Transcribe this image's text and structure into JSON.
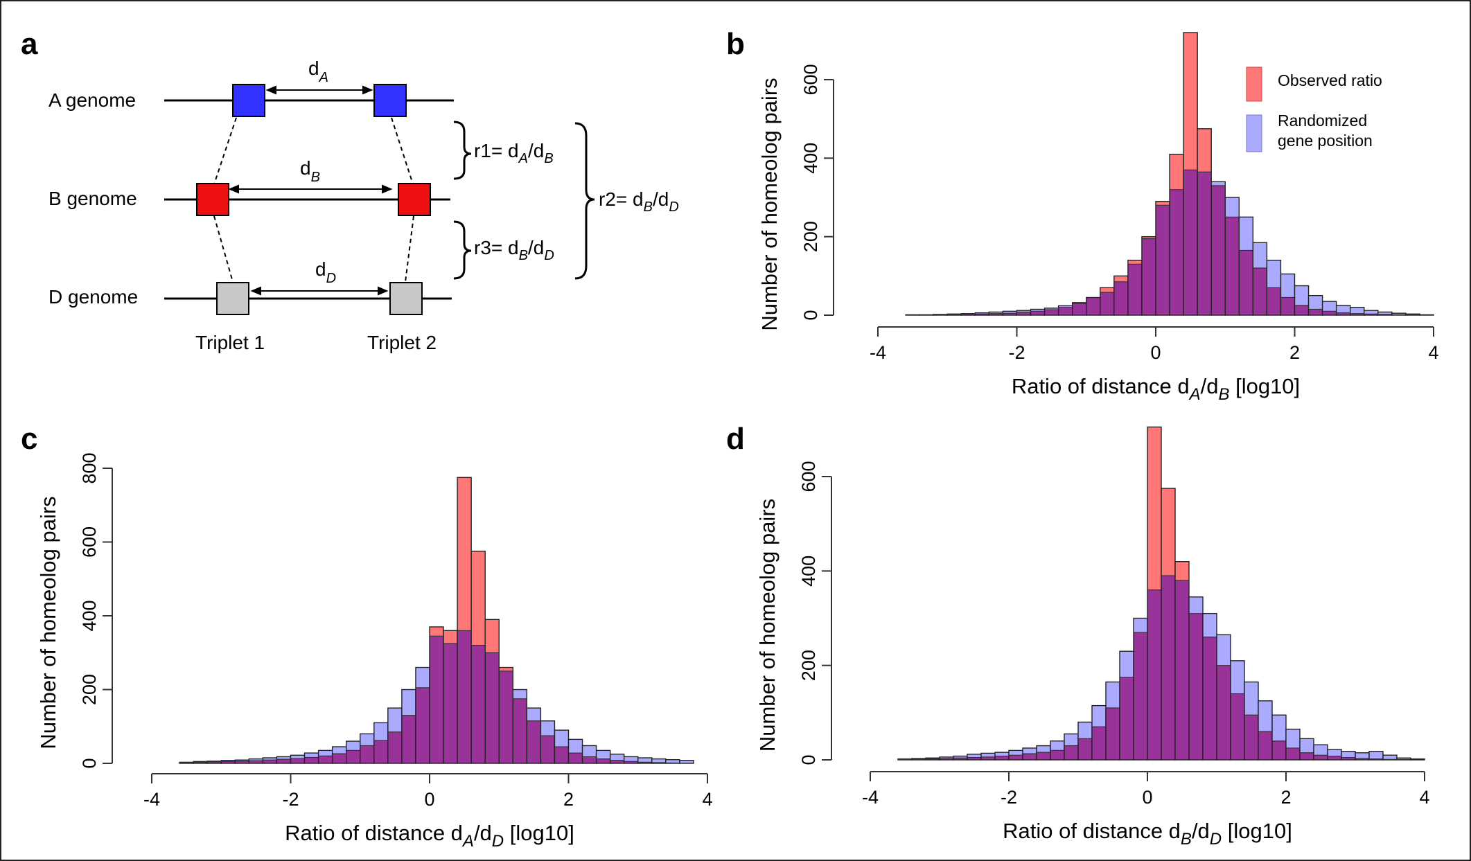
{
  "panels": {
    "a": {
      "letter": "a",
      "genomes": [
        "A genome",
        "B genome",
        "D genome"
      ],
      "triplets": [
        "Triplet 1",
        "Triplet 2"
      ],
      "d_labels": [
        "d",
        "d",
        "d"
      ],
      "d_subs": [
        "A",
        "B",
        "D"
      ],
      "ratios": [
        {
          "head": "r1",
          "eq": "= d",
          "s1": "A",
          "mid": "/d",
          "s2": "B"
        },
        {
          "head": "r3",
          "eq": "= d",
          "s1": "B",
          "mid": "/d",
          "s2": "D"
        },
        {
          "head": "r2",
          "eq": "= d",
          "s1": "B",
          "mid": "/d",
          "s2": "D"
        }
      ],
      "colors": {
        "A": "#3333ff",
        "B": "#ee1111",
        "D": "#c8c8c8"
      }
    },
    "b": {
      "letter": "b"
    },
    "c": {
      "letter": "c"
    },
    "d": {
      "letter": "d"
    }
  },
  "legend": {
    "observed": "Observed ratio",
    "randomized_line1": "Randomized",
    "randomized_line2": "gene position",
    "colors": {
      "observed": "#ff7777",
      "randomized": "#aaaaff",
      "overlap": "#993399"
    }
  },
  "chart_data": [
    {
      "type": "bar",
      "panel": "b",
      "ylabel": "Number of homeolog pairs",
      "xlabel": {
        "prefix": "Ratio of distance ",
        "v1": "d",
        "s1": "A",
        "mid": "/d",
        "v2": "",
        "s2": "B",
        "suffix": "  [log10]"
      },
      "xlim": [
        -4,
        4
      ],
      "ylim": [
        0,
        700
      ],
      "xticks": [
        -4,
        -2,
        0,
        2,
        4
      ],
      "xtick_labels": [
        "-4",
        "-2",
        "0",
        "2",
        "4"
      ],
      "yticks": [
        0,
        200,
        400,
        600
      ],
      "ytick_labels": [
        "0",
        "200",
        "400",
        "600"
      ],
      "bin_start": -4.0,
      "bin_width": 0.2,
      "series": [
        {
          "name": "Observed ratio",
          "values": [
            0,
            0,
            1,
            0,
            1,
            2,
            3,
            3,
            4,
            5,
            8,
            10,
            14,
            20,
            30,
            45,
            70,
            100,
            140,
            200,
            290,
            410,
            720,
            475,
            330,
            250,
            165,
            120,
            70,
            45,
            25,
            15,
            10,
            6,
            4,
            3,
            2,
            1,
            1,
            0
          ]
        },
        {
          "name": "Randomized gene position",
          "values": [
            0,
            0,
            1,
            1,
            2,
            3,
            4,
            6,
            8,
            10,
            12,
            15,
            18,
            24,
            32,
            45,
            58,
            85,
            130,
            195,
            280,
            320,
            370,
            365,
            340,
            300,
            250,
            185,
            140,
            105,
            75,
            50,
            35,
            25,
            20,
            12,
            8,
            5,
            3,
            1
          ]
        }
      ]
    },
    {
      "type": "bar",
      "panel": "c",
      "ylabel": "Number of homeolog pairs",
      "xlabel": {
        "prefix": "Ratio of distance  ",
        "v1": "d",
        "s1": "A",
        "mid": "/d",
        "v2": "",
        "s2": "D",
        "suffix": "   [log10]"
      },
      "xlim": [
        -4,
        4
      ],
      "ylim": [
        0,
        800
      ],
      "xticks": [
        -4,
        -2,
        0,
        2,
        4
      ],
      "xtick_labels": [
        "-4",
        "-2",
        "0",
        "2",
        "4"
      ],
      "yticks": [
        0,
        200,
        400,
        600,
        800
      ],
      "ytick_labels": [
        "0",
        "200",
        "400",
        "600",
        "800"
      ],
      "bin_start": -4.0,
      "bin_width": 0.2,
      "series": [
        {
          "name": "Observed ratio",
          "values": [
            0,
            0,
            2,
            3,
            4,
            5,
            6,
            7,
            9,
            11,
            13,
            16,
            20,
            26,
            35,
            48,
            62,
            85,
            130,
            205,
            370,
            360,
            775,
            575,
            390,
            260,
            175,
            115,
            75,
            45,
            28,
            18,
            12,
            8,
            5,
            3,
            2,
            1,
            0,
            0
          ]
        },
        {
          "name": "Randomized gene position",
          "values": [
            0,
            0,
            3,
            5,
            6,
            8,
            9,
            12,
            15,
            18,
            22,
            28,
            35,
            45,
            60,
            80,
            110,
            150,
            200,
            260,
            345,
            325,
            360,
            320,
            300,
            250,
            200,
            150,
            115,
            90,
            65,
            48,
            35,
            25,
            18,
            15,
            12,
            10,
            8,
            0
          ]
        }
      ]
    },
    {
      "type": "bar",
      "panel": "d",
      "ylabel": "Number of homeolog pairs",
      "xlabel": {
        "prefix": "Ratio of distance  ",
        "v1": "d",
        "s1": "B",
        "mid": "/d",
        "v2": "",
        "s2": "D",
        "suffix": "  [log10]"
      },
      "xlim": [
        -4,
        4.3
      ],
      "ylim": [
        0,
        700
      ],
      "xticks": [
        -4,
        -2,
        0,
        2,
        4
      ],
      "xtick_labels": [
        "-4",
        "-2",
        "0",
        "2",
        "4"
      ],
      "yticks": [
        0,
        200,
        400,
        600
      ],
      "ytick_labels": [
        "0",
        "200",
        "400",
        "600"
      ],
      "bin_start": -4.0,
      "bin_width": 0.2,
      "series": [
        {
          "name": "Observed ratio",
          "values": [
            0,
            0,
            1,
            1,
            2,
            3,
            4,
            5,
            6,
            8,
            10,
            13,
            16,
            20,
            30,
            45,
            70,
            110,
            175,
            270,
            705,
            575,
            420,
            310,
            260,
            200,
            140,
            95,
            60,
            40,
            25,
            15,
            10,
            8,
            5,
            3,
            2,
            1,
            1,
            0,
            0
          ]
        },
        {
          "name": "Randomized gene position",
          "values": [
            0,
            0,
            2,
            3,
            4,
            6,
            8,
            12,
            14,
            16,
            20,
            25,
            30,
            40,
            55,
            80,
            115,
            165,
            230,
            300,
            360,
            390,
            380,
            345,
            310,
            265,
            210,
            165,
            125,
            95,
            65,
            45,
            32,
            22,
            18,
            15,
            18,
            10,
            4,
            2,
            0
          ]
        }
      ]
    }
  ]
}
